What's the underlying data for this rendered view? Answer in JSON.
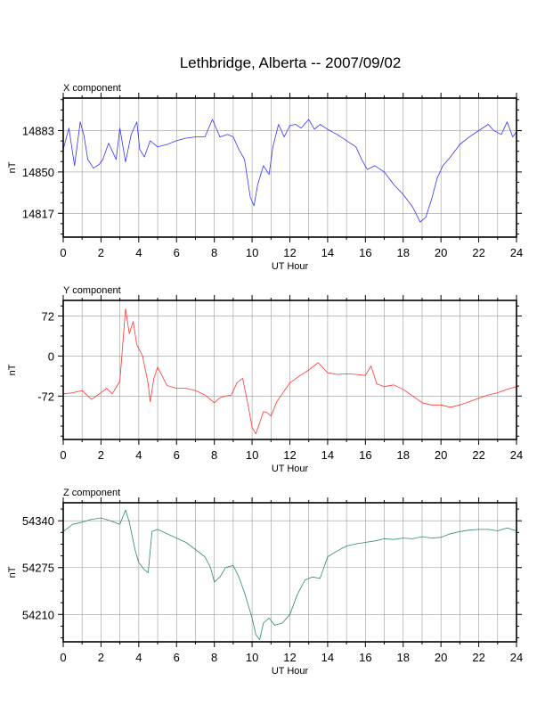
{
  "figure": {
    "title": "Lethbridge, Alberta -- 2007/09/02"
  },
  "chart_data": [
    {
      "type": "line",
      "title": "X component",
      "xlabel": "UT Hour",
      "ylabel": "nT",
      "color": "#3333ff",
      "xlim": [
        0,
        24
      ],
      "ylim": [
        14798,
        14909
      ],
      "xticks": [
        "0",
        "2",
        "4",
        "6",
        "8",
        "10",
        "12",
        "14",
        "16",
        "18",
        "20",
        "22",
        "24"
      ],
      "yticks": [
        "14883",
        "14850",
        "14817"
      ],
      "ytick_values": [
        14883,
        14850,
        14817
      ],
      "grid": true,
      "series": [
        {
          "x": [
            0,
            0.3,
            0.6,
            0.9,
            1.1,
            1.3,
            1.6,
            1.9,
            2.1,
            2.4,
            2.8,
            3.0,
            3.3,
            3.6,
            3.9,
            4.05,
            4.3,
            4.6,
            5.0,
            5.5,
            6.0,
            6.5,
            7.0,
            7.5,
            7.9,
            8.3,
            8.7,
            9.0,
            9.3,
            9.6,
            9.9,
            10.1,
            10.3,
            10.6,
            10.9,
            11.1,
            11.4,
            11.7,
            12.0,
            12.3,
            12.6,
            13.0,
            13.3,
            13.6,
            14.0,
            14.5,
            15.0,
            15.5,
            15.8,
            16.1,
            16.5,
            17.0,
            17.5,
            18.0,
            18.5,
            18.9,
            19.2,
            19.5,
            19.8,
            20.1,
            20.5,
            21.0,
            21.5,
            22.0,
            22.5,
            22.8,
            23.2,
            23.5,
            23.8,
            24.0
          ],
          "y": [
            14868,
            14885,
            14855,
            14890,
            14879,
            14860,
            14853,
            14856,
            14860,
            14873,
            14860,
            14885,
            14858,
            14880,
            14890,
            14868,
            14862,
            14875,
            14870,
            14872,
            14875,
            14877,
            14878,
            14878,
            14892,
            14878,
            14880,
            14878,
            14868,
            14860,
            14830,
            14823,
            14840,
            14855,
            14848,
            14870,
            14888,
            14878,
            14887,
            14888,
            14885,
            14892,
            14884,
            14888,
            14884,
            14880,
            14875,
            14870,
            14860,
            14852,
            14855,
            14850,
            14840,
            14832,
            14822,
            14810,
            14814,
            14828,
            14845,
            14855,
            14862,
            14872,
            14878,
            14883,
            14888,
            14883,
            14880,
            14890,
            14878,
            14882
          ]
        }
      ]
    },
    {
      "type": "line",
      "title": "Y component",
      "xlabel": "UT Hour",
      "ylabel": "nT",
      "color": "#ff3333",
      "xlim": [
        0,
        24
      ],
      "ylim": [
        -150,
        100
      ],
      "xticks": [
        "0",
        "2",
        "4",
        "6",
        "8",
        "10",
        "12",
        "14",
        "16",
        "18",
        "20",
        "22",
        "24"
      ],
      "yticks": [
        "72",
        "0",
        "-72"
      ],
      "ytick_values": [
        72,
        0,
        -72
      ],
      "grid": true,
      "series": [
        {
          "x": [
            0,
            0.5,
            1.0,
            1.5,
            2.0,
            2.3,
            2.6,
            3.0,
            3.3,
            3.5,
            3.7,
            3.9,
            4.2,
            4.5,
            4.6,
            4.8,
            5.0,
            5.5,
            6.0,
            6.5,
            7.0,
            7.5,
            8.0,
            8.3,
            8.6,
            8.9,
            9.2,
            9.5,
            9.8,
            10.0,
            10.2,
            10.4,
            10.6,
            10.8,
            11.0,
            11.3,
            11.6,
            12.0,
            12.5,
            13.0,
            13.5,
            14.0,
            14.5,
            15.0,
            15.5,
            16.0,
            16.3,
            16.6,
            17.0,
            17.5,
            18.0,
            18.5,
            19.0,
            19.5,
            20.0,
            20.5,
            21.0,
            21.5,
            22.0,
            22.5,
            23.0,
            23.5,
            24.0
          ],
          "y": [
            -68,
            -66,
            -62,
            -78,
            -66,
            -58,
            -68,
            -45,
            85,
            40,
            62,
            20,
            0,
            -50,
            -82,
            -40,
            -20,
            -53,
            -58,
            -58,
            -62,
            -70,
            -84,
            -75,
            -72,
            -70,
            -48,
            -40,
            -90,
            -128,
            -140,
            -120,
            -100,
            -102,
            -108,
            -82,
            -68,
            -48,
            -36,
            -25,
            -12,
            -30,
            -33,
            -32,
            -33,
            -35,
            -18,
            -50,
            -55,
            -52,
            -60,
            -72,
            -84,
            -88,
            -88,
            -92,
            -88,
            -82,
            -76,
            -70,
            -66,
            -60,
            -55
          ]
        }
      ]
    },
    {
      "type": "line",
      "title": "Z component",
      "xlabel": "UT Hour",
      "ylabel": "nT",
      "color": "#2f8a5f",
      "xlim": [
        0,
        24
      ],
      "ylim": [
        54172,
        54365
      ],
      "xticks": [
        "0",
        "2",
        "4",
        "6",
        "8",
        "10",
        "12",
        "14",
        "16",
        "18",
        "20",
        "22",
        "24"
      ],
      "yticks": [
        "54340",
        "54275",
        "54210"
      ],
      "ytick_values": [
        54340,
        54275,
        54210
      ],
      "grid": true,
      "series": [
        {
          "x": [
            0,
            0.5,
            1.0,
            1.5,
            2.0,
            2.5,
            3.0,
            3.3,
            3.5,
            3.8,
            4.0,
            4.3,
            4.5,
            4.7,
            5.0,
            5.5,
            6.0,
            6.5,
            7.0,
            7.5,
            7.8,
            8.0,
            8.3,
            8.6,
            9.0,
            9.3,
            9.6,
            10.0,
            10.2,
            10.4,
            10.6,
            10.9,
            11.2,
            11.6,
            12.0,
            12.4,
            12.8,
            13.2,
            13.6,
            14.0,
            14.5,
            15.0,
            15.5,
            16.0,
            16.5,
            17.0,
            17.5,
            18.0,
            18.5,
            19.0,
            19.5,
            20.0,
            20.5,
            21.0,
            21.5,
            22.0,
            22.5,
            23.0,
            23.5,
            24.0
          ],
          "y": [
            54325,
            54335,
            54338,
            54342,
            54344,
            54340,
            54335,
            54355,
            54338,
            54300,
            54282,
            54272,
            54268,
            54325,
            54328,
            54322,
            54316,
            54310,
            54300,
            54290,
            54275,
            54255,
            54262,
            54275,
            54278,
            54262,
            54240,
            54205,
            54182,
            54175,
            54198,
            54205,
            54195,
            54198,
            54210,
            54238,
            54258,
            54262,
            54260,
            54290,
            54298,
            54305,
            54308,
            54310,
            54312,
            54315,
            54314,
            54316,
            54315,
            54318,
            54316,
            54317,
            54322,
            54325,
            54327,
            54328,
            54328,
            54326,
            54330,
            54326
          ]
        }
      ]
    }
  ]
}
